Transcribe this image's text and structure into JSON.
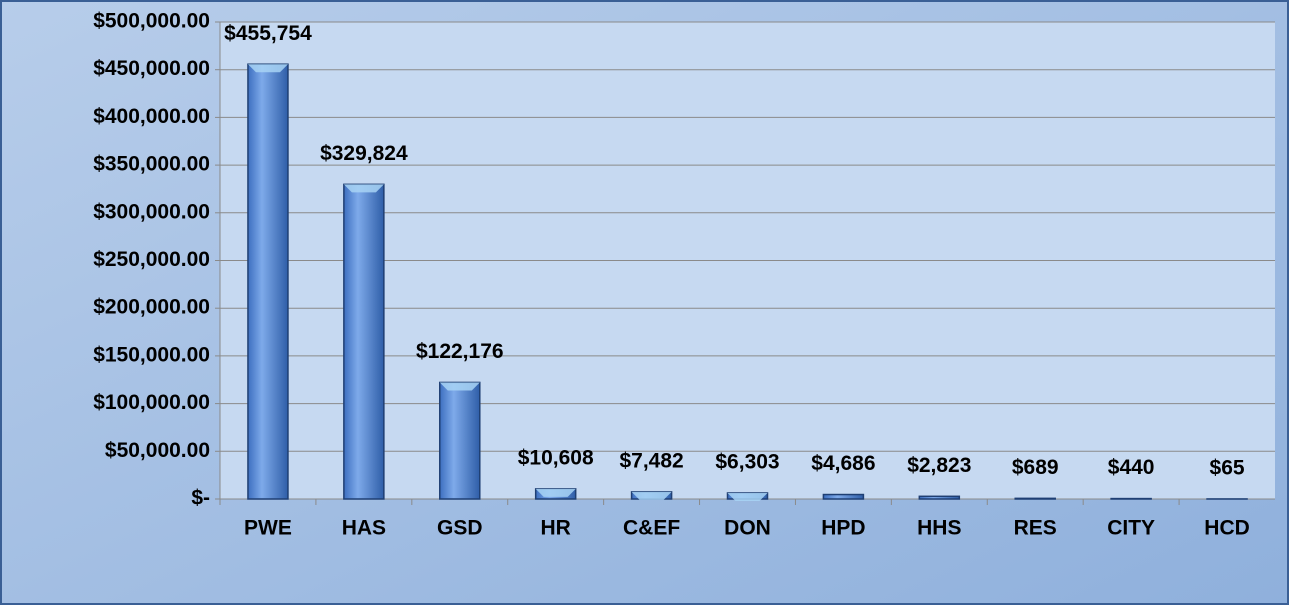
{
  "chart_data": {
    "type": "bar",
    "categories": [
      "PWE",
      "HAS",
      "GSD",
      "HR",
      "C&EF",
      "DON",
      "HPD",
      "HHS",
      "RES",
      "CITY",
      "HCD"
    ],
    "values": [
      455754,
      329824,
      122176,
      10608,
      7482,
      6303,
      4686,
      2823,
      689,
      440,
      65
    ],
    "value_labels": [
      "$455,754",
      "$329,824",
      "$122,176",
      "$10,608",
      "$7,482",
      "$6,303",
      "$4,686",
      "$2,823",
      "$689",
      "$440",
      "$65"
    ],
    "color": "#5b8fd6",
    "ylim": [
      0,
      500000
    ],
    "yticks": [
      {
        "value": 0,
        "label": "$-"
      },
      {
        "value": 50000,
        "label": "$50,000.00"
      },
      {
        "value": 100000,
        "label": "$100,000.00"
      },
      {
        "value": 150000,
        "label": "$150,000.00"
      },
      {
        "value": 200000,
        "label": "$200,000.00"
      },
      {
        "value": 250000,
        "label": "$250,000.00"
      },
      {
        "value": 300000,
        "label": "$300,000.00"
      },
      {
        "value": 350000,
        "label": "$350,000.00"
      },
      {
        "value": 400000,
        "label": "$400,000.00"
      },
      {
        "value": 450000,
        "label": "$450,000.00"
      },
      {
        "value": 500000,
        "label": "$500,000.00"
      }
    ],
    "grid": true
  }
}
